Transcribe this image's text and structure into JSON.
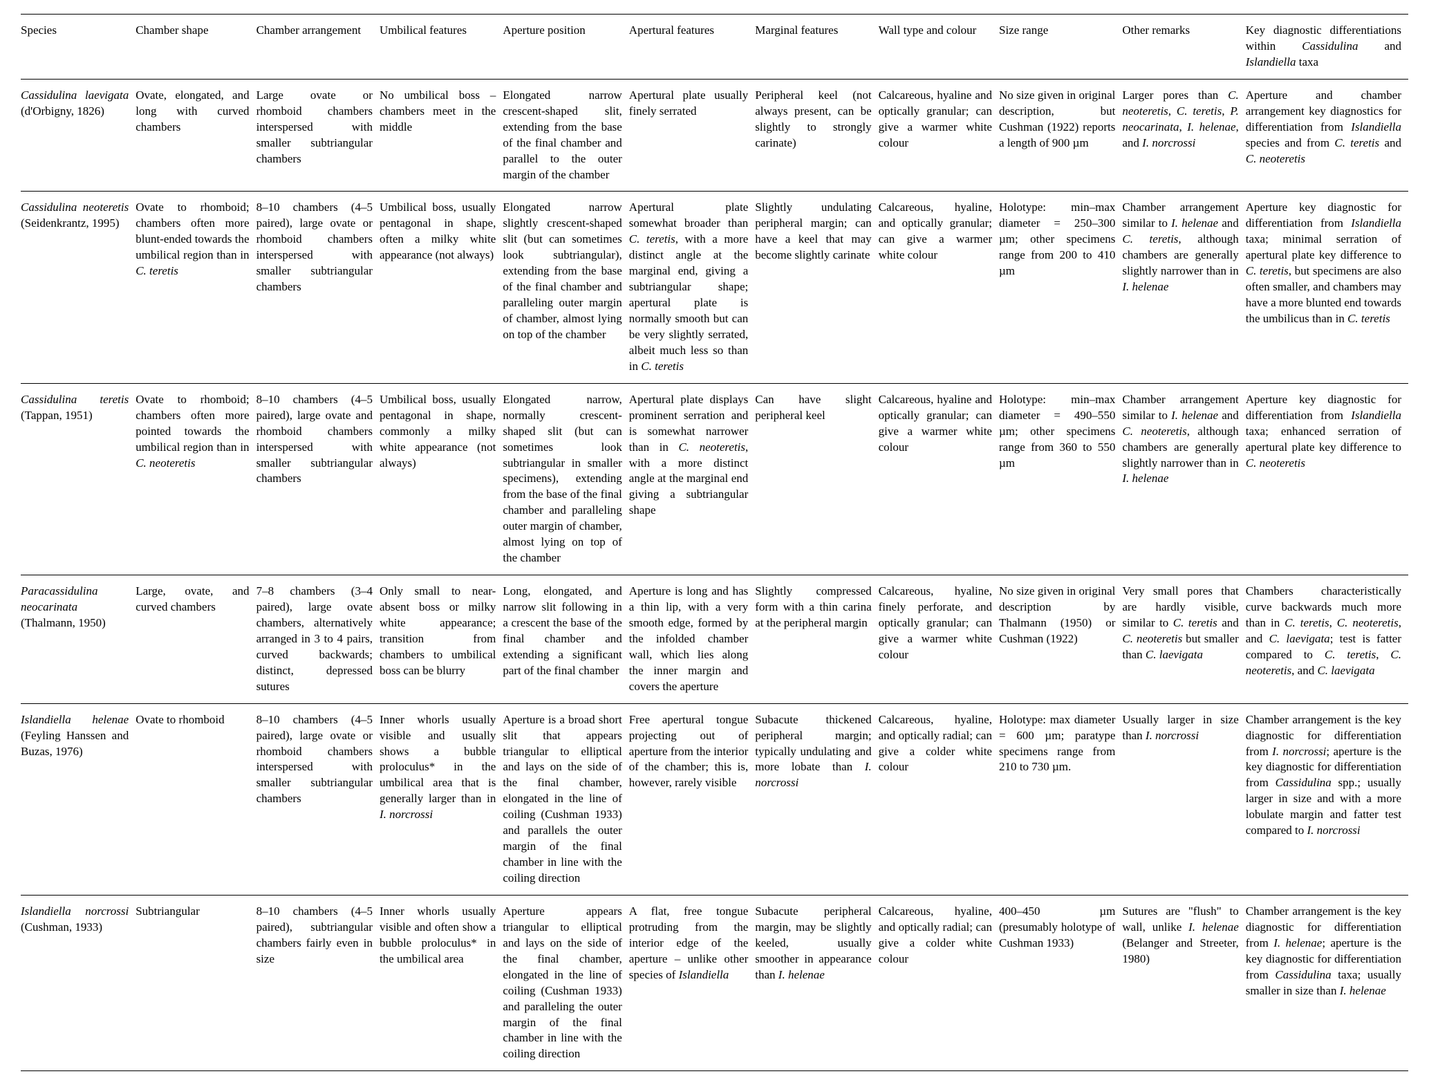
{
  "table": {
    "font_family": "Times New Roman",
    "font_size_pt": 12,
    "border_color": "#000000",
    "background_color": "#ffffff",
    "text_color": "#000000",
    "columns": [
      "Species",
      "Chamber shape",
      "Chamber arrangement",
      "Umbilical features",
      "Aperture position",
      "Apertural features",
      "Marginal features",
      "Wall type and colour",
      "Size range",
      "Other remarks",
      "Key diagnostic differentiations within <i>Cassidulina</i> and <i>Islandiella</i> taxa"
    ],
    "rows": [
      {
        "species": "<i>Cassidulina laevigata</i> (d'Orbigny, 1826)",
        "chamber_shape": "Ovate, elongated, and long with curved chambers",
        "chamber_arrangement": "Large ovate or rhomboid chambers interspersed with smaller subtriangular chambers",
        "umbilical_features": "No umbilical boss – chambers meet in the middle",
        "aperture_position": "Elongated narrow crescent-shaped slit, extending from the base of the final chamber and parallel to the outer margin of the chamber",
        "apertural_features": "Apertural plate usually finely serrated",
        "marginal_features": "Peripheral keel (not always present, can be slightly to strongly carinate)",
        "wall_type": "Calcareous, hyaline and optically granular; can give a warmer white colour",
        "size_range": "No size given in original description, but Cushman (1922) reports a length of 900 µm",
        "other_remarks": "Larger pores than <i>C. neoteretis</i>, <i>C. teretis</i>, <i>P. neocarinata</i>, <i>I. helenae</i>, and <i>I. norcrossi</i>",
        "key_diag": "Aperture and chamber arrangement key diagnostics for differentiation from <i>Islandiella</i> species and from <i>C. teretis</i> and <i>C. neoteretis</i>"
      },
      {
        "species": "<i>Cassidulina neoteretis</i> (Seidenkrantz, 1995)",
        "chamber_shape": "Ovate to rhomboid; chambers often more blunt-ended towards the umbilical region than in <i>C. teretis</i>",
        "chamber_arrangement": "8–10 chambers (4–5 paired), large ovate or rhomboid chambers interspersed with smaller subtriangular chambers",
        "umbilical_features": "Umbilical boss, usually pentagonal in shape, often a milky white appearance (not always)",
        "aperture_position": "Elongated narrow slightly crescent-shaped slit (but can sometimes look subtriangular), extending from the base of the final chamber and paralleling outer margin of chamber, almost lying on top of the chamber",
        "apertural_features": "Apertural plate somewhat broader than <i>C. teretis</i>, with a more distinct angle at the marginal end, giving a subtriangular shape; apertural plate is normally smooth but can be very slightly serrated, albeit much less so than in <i>C. teretis</i>",
        "marginal_features": "Slightly undulating peripheral margin; can have a keel that may become slightly carinate",
        "wall_type": "Calcareous, hyaline, and optically granular; can give a warmer white colour",
        "size_range": "Holotype: min–max diameter = 250–300 µm; other specimens range from 200 to 410 µm",
        "other_remarks": "Chamber arrangement similar to <i>I. helenae</i> and <i>C. teretis</i>, although chambers are generally slightly narrower than in <i>I. helenae</i>",
        "key_diag": "Aperture key diagnostic for differentiation from <i>Islandiella</i> taxa; minimal serration of apertural plate key difference to <i>C. teretis</i>, but specimens are also often smaller, and chambers may have a more blunted end towards the umbilicus than in <i>C. teretis</i>"
      },
      {
        "species": "<i>Cassidulina teretis</i> (Tappan, 1951)",
        "chamber_shape": "Ovate to rhomboid; chambers often more pointed towards the umbilical region than in <i>C. neoteretis</i>",
        "chamber_arrangement": "8–10 chambers (4–5 paired), large ovate and rhomboid chambers interspersed with smaller subtriangular chambers",
        "umbilical_features": "Umbilical boss, usually pentagonal in shape, commonly a milky white appearance (not always)",
        "aperture_position": "Elongated narrow, normally crescent-shaped slit (but can sometimes look subtriangular in smaller specimens), extending from the base of the final chamber and paralleling outer margin of chamber, almost lying on top of the chamber",
        "apertural_features": "Apertural plate displays prominent serration and is somewhat narrower than in <i>C. neoteretis</i>, with a more distinct angle at the marginal end giving a subtriangular shape",
        "marginal_features": "Can have slight peripheral keel",
        "wall_type": "Calcareous, hyaline and optically granular; can give a warmer white colour",
        "size_range": "Holotype: min–max diameter = 490–550 µm; other specimens range from 360 to 550 µm",
        "other_remarks": "Chamber arrangement similar to <i>I. helenae</i> and <i>C. neoteretis</i>, although chambers are generally slightly narrower than in <i>I. helenae</i>",
        "key_diag": "Aperture key diagnostic for differentiation from <i>Islandiella</i> taxa; enhanced serration of apertural plate key difference to <i>C. neoteretis</i>"
      },
      {
        "species": "<i>Paracassidulina neocarinata</i> (Thalmann, 1950)",
        "chamber_shape": "Large, ovate, and curved chambers",
        "chamber_arrangement": "7–8 chambers (3–4 paired), large ovate chambers, alternatively arranged in 3 to 4 pairs, curved backwards; distinct, depressed sutures",
        "umbilical_features": "Only small to near-absent boss or milky white appearance; transition from chambers to umbilical boss can be blurry",
        "aperture_position": "Long, elongated, and narrow slit following in a crescent the base of the final chamber and extending a significant part of the final chamber",
        "apertural_features": "Aperture is long and has a thin lip, with a very smooth edge, formed by the infolded chamber wall, which lies along the inner margin and covers the aperture",
        "marginal_features": "Slightly compressed form with a thin carina at the peripheral margin",
        "wall_type": "Calcareous, hyaline, finely perforate, and optically granular; can give a warmer white colour",
        "size_range": "No size given in original description by Thalmann (1950) or Cushman (1922)",
        "other_remarks": "Very small pores that are hardly visible, similar to <i>C. teretis</i> and <i>C. neoteretis</i> but smaller than <i>C. laevigata</i>",
        "key_diag": "Chambers characteristically curve backwards much more than in <i>C. teretis</i>, <i>C. neoteretis</i>, and <i>C. laevigata</i>; test is fatter compared to <i>C. teretis</i>, <i>C. neoteretis</i>, and <i>C. laevigata</i>"
      },
      {
        "species": "<i>Islandiella helenae</i> (Feyling Hanssen and Buzas, 1976)",
        "chamber_shape": "Ovate to rhomboid",
        "chamber_arrangement": "8–10 chambers (4–5 paired), large ovate or rhomboid chambers interspersed with smaller subtriangular chambers",
        "umbilical_features": "Inner whorls usually visible and usually shows a bubble proloculus* in the umbilical area that is generally larger than in <i>I. norcrossi</i>",
        "aperture_position": "Aperture is a broad short slit that appears triangular to elliptical and lays on the side of the final chamber, elongated in the line of coiling (Cushman 1933) and parallels the outer margin of the final chamber in line with the coiling direction",
        "apertural_features": "Free apertural tongue projecting out of aperture from the interior of the chamber; this is, however, rarely visible",
        "marginal_features": "Subacute thickened peripheral margin; typically undulating and more lobate than <i>I. norcrossi</i>",
        "wall_type": "Calcareous, hyaline, and optically radial; can give a colder white colour",
        "size_range": "Holotype: max diameter = 600 µm; paratype specimens range from 210 to 730 µm.",
        "other_remarks": "Usually larger in size than <i>I. norcrossi</i>",
        "key_diag": "Chamber arrangement is the key diagnostic for differentiation from <i>I. norcrossi</i>; aperture is the key diagnostic for differentiation from <i>Cassidulina</i> spp.; usually larger in size and with a more lobulate margin and fatter test compared to <i>I. norcrossi</i>"
      },
      {
        "species": "<i>Islandiella norcrossi</i> (Cushman, 1933)",
        "chamber_shape": "Subtriangular",
        "chamber_arrangement": "8–10 chambers (4–5 paired), subtriangular chambers fairly even in size",
        "umbilical_features": "Inner whorls usually visible and often show a bubble proloculus* in the umbilical area",
        "aperture_position": "Aperture appears triangular to elliptical and lays on the side of the final chamber, elongated in the line of coiling (Cushman 1933) and paralleling the outer margin of the final chamber in line with the coiling direction",
        "apertural_features": "A flat, free tongue protruding from the interior edge of the aperture – unlike other species of <i>Islandiella</i>",
        "marginal_features": "Subacute peripheral margin, may be slightly keeled, usually smoother in appearance than <i>I. helenae</i>",
        "wall_type": "Calcareous, hyaline, and optically radial; can give a colder white colour",
        "size_range": "400–450 µm (presumably holotype of Cushman 1933)",
        "other_remarks": "Sutures are \"flush\" to wall, unlike <i>I. helenae</i> (Belanger and Streeter, 1980)",
        "key_diag": "Chamber arrangement is the key diagnostic for differentiation from <i>I. helenae</i>; aperture is the key diagnostic for differentiation from <i>Cassidulina</i> taxa; usually smaller in size than <i>I. helenae</i>"
      }
    ]
  }
}
